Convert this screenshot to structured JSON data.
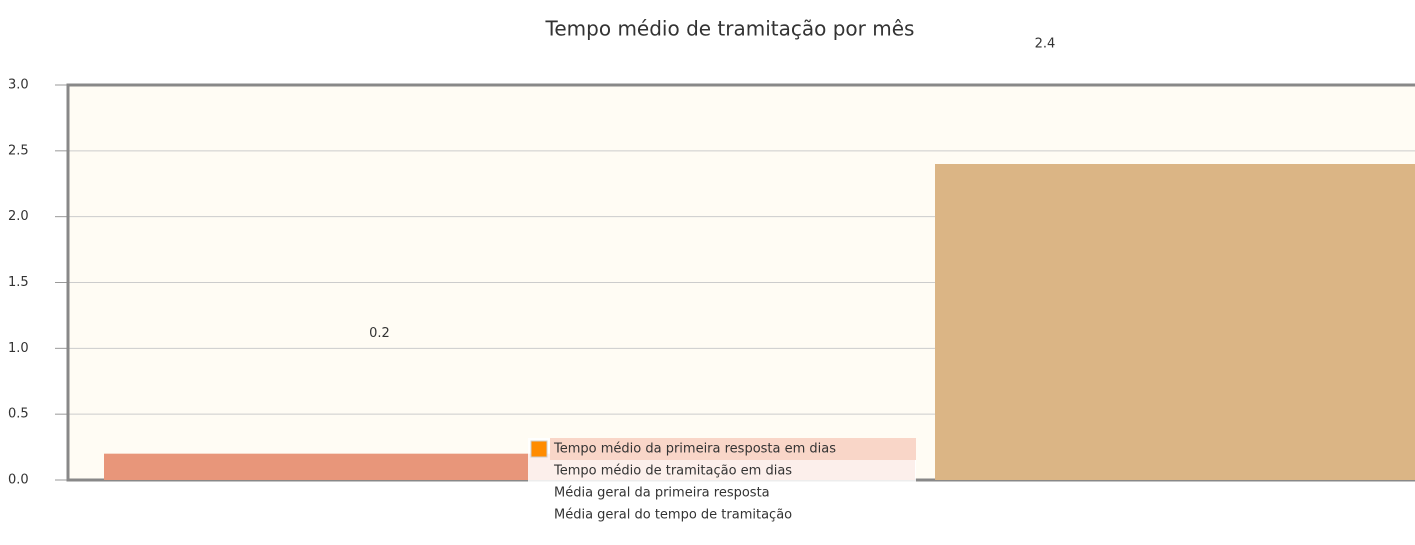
{
  "chart_data": {
    "type": "bar",
    "title": "Tempo médio de tramitação por mês",
    "categories": [
      null
    ],
    "series": [
      {
        "name": "Tempo médio da primeira resposta em dias",
        "color": "#e8967a",
        "legend_color": "#ff8c00",
        "values": [
          0.2
        ]
      },
      {
        "name": "Tempo médio de tramitação em dias",
        "color": "#dbb585",
        "values": [
          2.4
        ]
      },
      {
        "name": "Média geral da primeira resposta",
        "values": [
          null
        ]
      },
      {
        "name": "Média geral do tempo de tramitação",
        "values": [
          null
        ]
      }
    ],
    "ylim": [
      0,
      3
    ],
    "yticks": [
      {
        "value": 0,
        "label": "0.0"
      },
      0.5,
      {
        "value": 1,
        "label": "1.0"
      },
      1.5,
      {
        "value": 2,
        "label": "2.0"
      },
      2.5,
      {
        "value": 3,
        "label": "3.0"
      }
    ],
    "grid": true
  }
}
